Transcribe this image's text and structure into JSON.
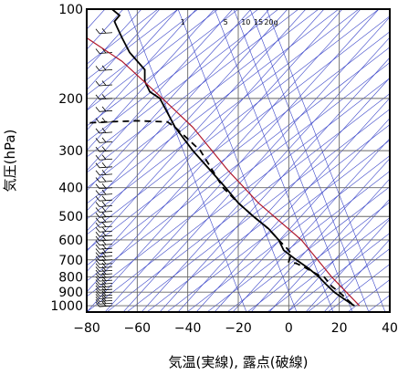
{
  "chart_data": {
    "type": "line",
    "title": "",
    "xlabel": "気温(実線), 露点(破線)",
    "ylabel": "気圧(hPa)",
    "xlim": [
      -80,
      40
    ],
    "ylim": [
      1050,
      100
    ],
    "y_scale": "log",
    "x_ticks": [
      -80,
      -60,
      -40,
      -20,
      0,
      20,
      40
    ],
    "x_tick_labels": [
      "−80",
      "−60",
      "−40",
      "−20",
      "0",
      "20",
      "40"
    ],
    "y_ticks": [
      100,
      200,
      300,
      400,
      500,
      600,
      700,
      800,
      900,
      1000
    ],
    "y_tick_labels": [
      "100",
      "200",
      "300",
      "400",
      "500",
      "600",
      "700",
      "800",
      "900",
      "1000"
    ],
    "grid": true,
    "mixing_ratio_labels": [
      {
        "text": "1",
        "x": -42
      },
      {
        "text": "5",
        "x": -25
      },
      {
        "text": "10",
        "x": -17
      },
      {
        "text": "15",
        "x": -12
      },
      {
        "text": "20g",
        "x": -7
      }
    ],
    "series": [
      {
        "style": "solid",
        "color": "#000000",
        "points": [
          [
            26,
            1000
          ],
          [
            22,
            950
          ],
          [
            18,
            900
          ],
          [
            15,
            850
          ],
          [
            12,
            800
          ],
          [
            8,
            750
          ],
          [
            3,
            700
          ],
          [
            -2,
            650
          ],
          [
            -4,
            600
          ],
          [
            -8,
            550
          ],
          [
            -14,
            500
          ],
          [
            -20,
            450
          ],
          [
            -25,
            400
          ],
          [
            -31,
            350
          ],
          [
            -38,
            300
          ],
          [
            -45,
            250
          ],
          [
            -51,
            200
          ],
          [
            -55,
            190
          ],
          [
            -57,
            175
          ],
          [
            -57,
            160
          ],
          [
            -63,
            140
          ],
          [
            -66,
            125
          ],
          [
            -68,
            115
          ],
          [
            -69,
            110
          ],
          [
            -67,
            105
          ],
          [
            -70,
            100
          ]
        ]
      },
      {
        "style": "dashed",
        "color": "#000000",
        "points": [
          [
            25,
            985
          ],
          [
            20,
            900
          ],
          [
            17,
            860
          ],
          [
            14,
            800
          ],
          [
            12,
            790
          ],
          [
            6,
            740
          ],
          [
            3,
            720
          ],
          [
            0,
            710
          ],
          [
            1,
            670
          ],
          [
            0,
            650
          ],
          [
            -4,
            600
          ],
          [
            -8,
            550
          ],
          [
            -14,
            500
          ],
          [
            -20,
            450
          ],
          [
            -26,
            400
          ],
          [
            -35,
            300
          ],
          [
            -45,
            250
          ],
          [
            -48,
            240
          ],
          [
            -60,
            238
          ],
          [
            -72,
            240
          ],
          [
            -80,
            242
          ]
        ]
      },
      {
        "style": "solid",
        "color": "#b0182b",
        "points": [
          [
            28,
            1000
          ],
          [
            17,
            800
          ],
          [
            5,
            600
          ],
          [
            -12,
            450
          ],
          [
            -24,
            350
          ],
          [
            -38,
            250
          ],
          [
            -50,
            200
          ],
          [
            -66,
            150
          ],
          [
            -80,
            125
          ]
        ]
      }
    ]
  }
}
